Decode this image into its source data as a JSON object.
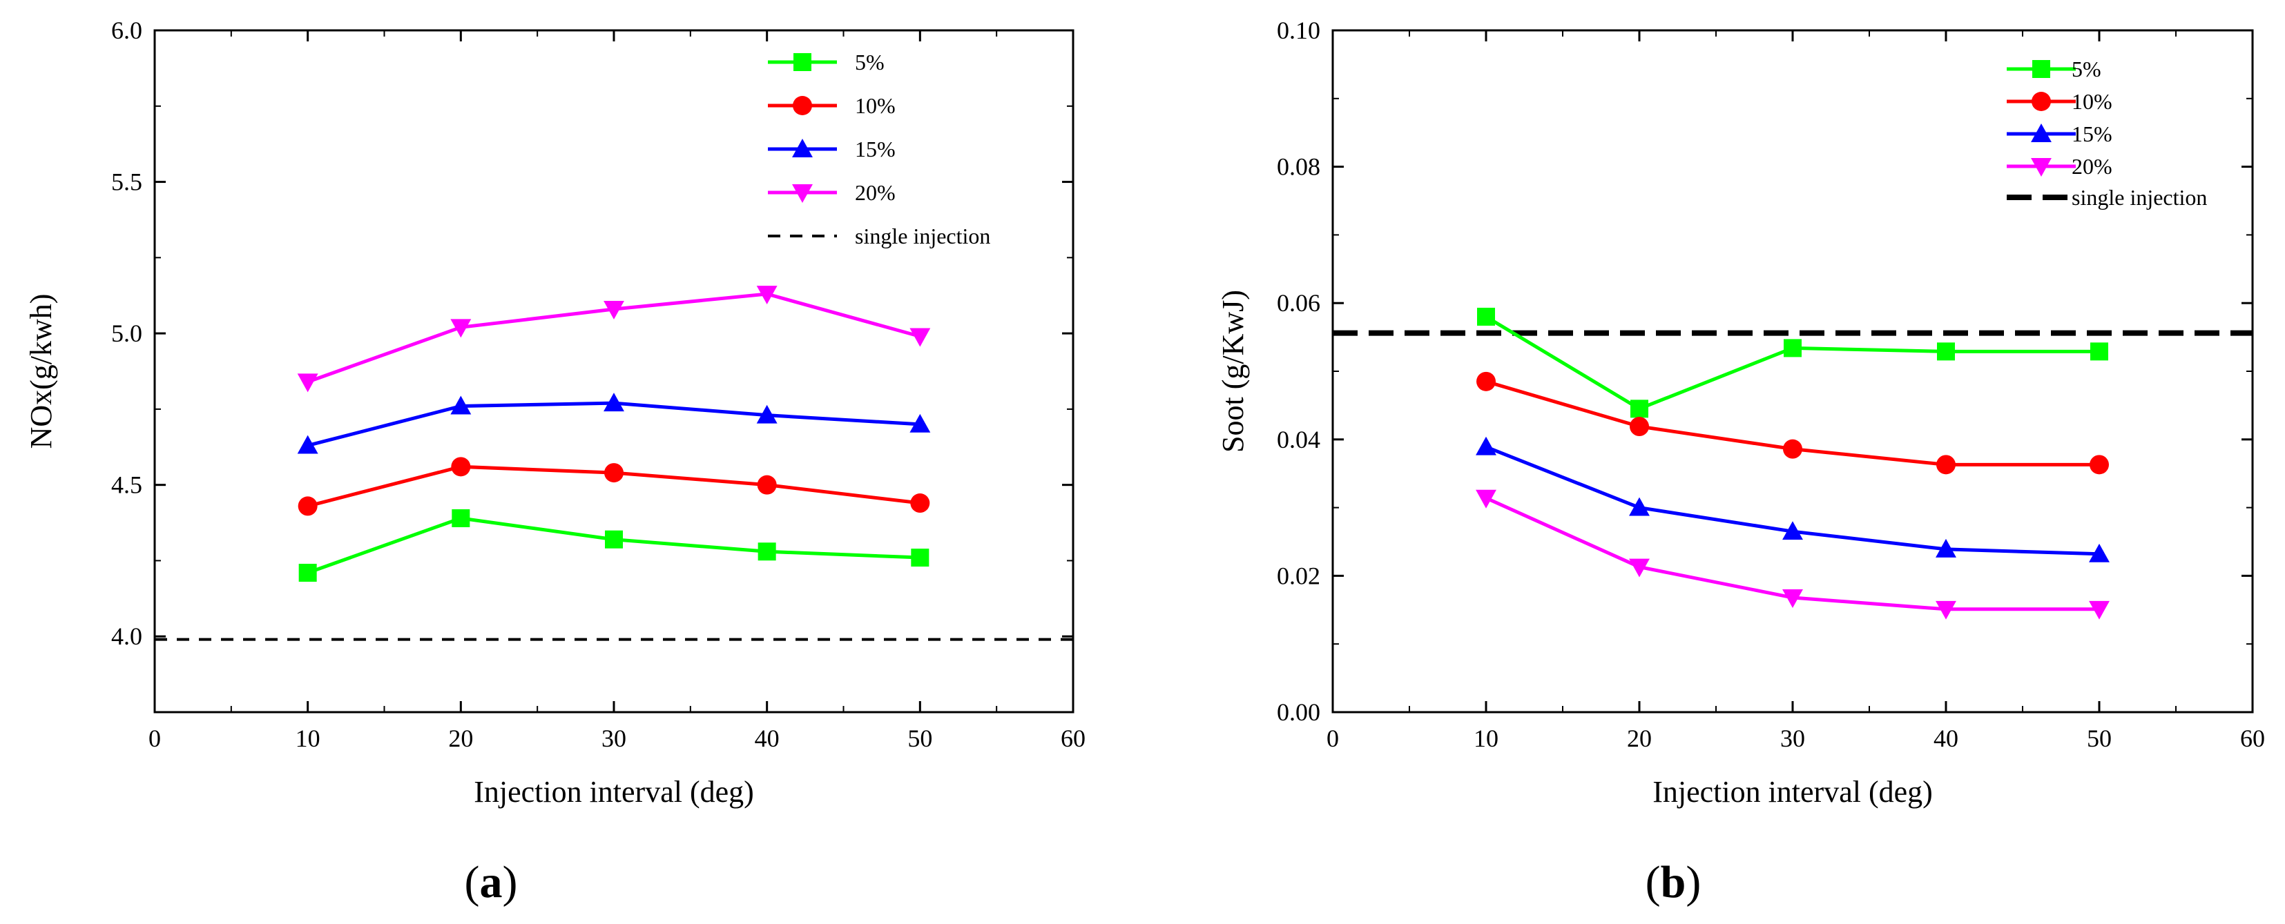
{
  "figure": {
    "panels": [
      {
        "label": "a",
        "open": "(",
        "close": ")"
      },
      {
        "label": "b",
        "open": "(",
        "close": ")"
      }
    ]
  },
  "chart_data": [
    {
      "type": "line",
      "panel": "a",
      "xlabel": "Injection interval (deg)",
      "ylabel": "NOx(g/kwh)",
      "xlim": [
        0,
        60
      ],
      "ylim": [
        3.75,
        6.0
      ],
      "xticks": [
        0,
        10,
        20,
        30,
        40,
        50,
        60
      ],
      "yticks": [
        4.0,
        4.5,
        5.0,
        5.5,
        6.0
      ],
      "ytick_labels": [
        "4.0",
        "4.5",
        "5.0",
        "5.5",
        "6.0"
      ],
      "x": [
        10,
        20,
        30,
        40,
        50
      ],
      "legend_position": "top-right",
      "series": [
        {
          "name": "5%",
          "color": "#00ff00",
          "marker": "square",
          "values": [
            4.21,
            4.39,
            4.32,
            4.28,
            4.26
          ]
        },
        {
          "name": "10%",
          "color": "#ff0000",
          "marker": "circle",
          "values": [
            4.43,
            4.56,
            4.54,
            4.5,
            4.44
          ]
        },
        {
          "name": "15%",
          "color": "#0000ff",
          "marker": "triangle-up",
          "values": [
            4.63,
            4.76,
            4.77,
            4.73,
            4.7
          ]
        },
        {
          "name": "20%",
          "color": "#ff00ff",
          "marker": "triangle-down",
          "values": [
            4.84,
            5.02,
            5.08,
            5.13,
            4.99
          ]
        }
      ],
      "reference": {
        "name": "single injection",
        "value": 3.99,
        "color": "#000000"
      }
    },
    {
      "type": "line",
      "panel": "b",
      "xlabel": "Injection interval (deg)",
      "ylabel": "Soot (g/KwJ)",
      "xlim": [
        0,
        60
      ],
      "ylim": [
        0.0,
        0.1
      ],
      "xticks": [
        0,
        10,
        20,
        30,
        40,
        50,
        60
      ],
      "yticks": [
        0.0,
        0.02,
        0.04,
        0.06,
        0.08,
        0.1
      ],
      "ytick_labels": [
        "0.00",
        "0.02",
        "0.04",
        "0.06",
        "0.08",
        "0.10"
      ],
      "x": [
        10,
        20,
        30,
        40,
        50
      ],
      "legend_position": "top-right",
      "series": [
        {
          "name": "5%",
          "color": "#00ff00",
          "marker": "square",
          "values": [
            0.058,
            0.0445,
            0.0534,
            0.0529,
            0.0529
          ]
        },
        {
          "name": "10%",
          "color": "#ff0000",
          "marker": "circle",
          "values": [
            0.0485,
            0.0419,
            0.0386,
            0.0363,
            0.0363
          ]
        },
        {
          "name": "15%",
          "color": "#0000ff",
          "marker": "triangle-up",
          "values": [
            0.0389,
            0.03,
            0.0265,
            0.0239,
            0.0232
          ]
        },
        {
          "name": "20%",
          "color": "#ff00ff",
          "marker": "triangle-down",
          "values": [
            0.0314,
            0.0213,
            0.0168,
            0.0151,
            0.0151
          ]
        }
      ],
      "reference": {
        "name": "single injection",
        "value": 0.0556,
        "color": "#000000"
      }
    }
  ]
}
